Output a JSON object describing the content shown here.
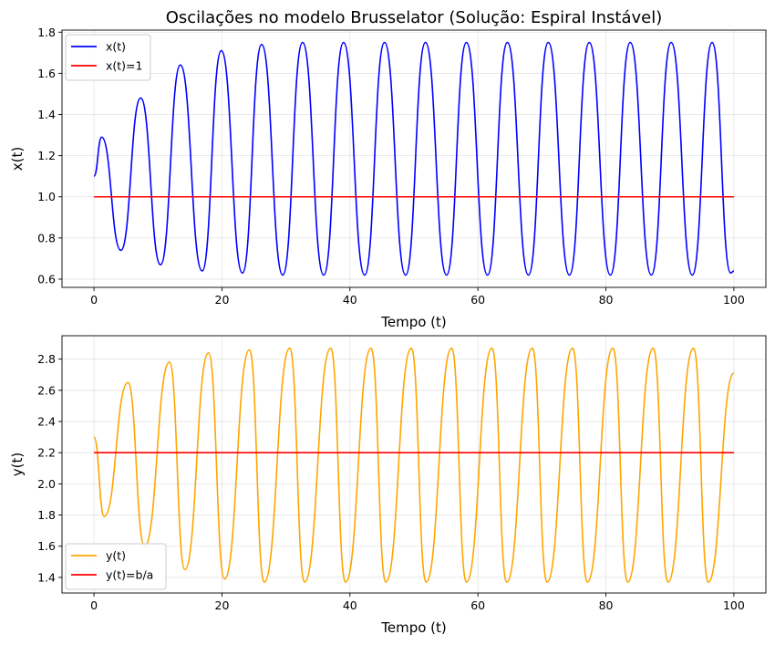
{
  "figure": {
    "title": "Oscilações no modelo Brusselator (Solução: Espiral Instável)"
  },
  "chart_data": [
    {
      "type": "line",
      "xlabel": "Tempo (t)",
      "ylabel": "x(t)",
      "xlim": [
        -5,
        105
      ],
      "ylim": [
        0.56,
        1.81
      ],
      "xticks": [
        0,
        20,
        40,
        60,
        80,
        100
      ],
      "yticks": [
        0.6,
        0.8,
        1.0,
        1.2,
        1.4,
        1.6,
        1.8
      ],
      "ytick_labels": [
        "0.6",
        "0.8",
        "1.0",
        "1.2",
        "1.4",
        "1.6",
        "1.8"
      ],
      "grid": true,
      "legend": "top-left",
      "series": [
        {
          "name": "x(t)",
          "color": "#0000ff",
          "x": [
            0,
            1.2,
            4.2,
            7.3,
            10.4,
            13.5,
            16.9,
            19.9,
            23.2,
            26.2,
            29.5,
            32.6,
            35.9,
            39.0,
            42.3,
            45.4,
            48.7,
            51.8,
            55.1,
            58.2,
            61.5,
            64.6,
            67.9,
            71.0,
            74.3,
            77.4,
            80.7,
            83.8,
            87.1,
            90.2,
            93.5,
            96.6,
            99.5,
            100
          ],
          "y": [
            1.1,
            1.29,
            0.74,
            1.48,
            0.67,
            1.64,
            0.64,
            1.71,
            0.63,
            1.74,
            0.62,
            1.75,
            0.62,
            1.75,
            0.62,
            1.75,
            0.62,
            1.75,
            0.62,
            1.75,
            0.62,
            1.75,
            0.62,
            1.75,
            0.62,
            1.75,
            0.62,
            1.75,
            0.62,
            1.75,
            0.62,
            1.75,
            0.63,
            0.64
          ]
        },
        {
          "name": "x(t)=1",
          "color": "#ff0000",
          "x": [
            0,
            100
          ],
          "y": [
            1.0,
            1.0
          ]
        }
      ]
    },
    {
      "type": "line",
      "xlabel": "Tempo (t)",
      "ylabel": "y(t)",
      "xlim": [
        -5,
        105
      ],
      "ylim": [
        1.3,
        2.95
      ],
      "xticks": [
        0,
        20,
        40,
        60,
        80,
        100
      ],
      "yticks": [
        1.4,
        1.6,
        1.8,
        2.0,
        2.2,
        2.4,
        2.6,
        2.8
      ],
      "ytick_labels": [
        "1.4",
        "1.6",
        "1.8",
        "2.0",
        "2.2",
        "2.4",
        "2.6",
        "2.8"
      ],
      "grid": true,
      "legend": "bottom-left",
      "series": [
        {
          "name": "y(t)",
          "color": "#ffa500",
          "x": [
            0,
            1.6,
            5.3,
            7.9,
            11.8,
            14.2,
            17.9,
            20.4,
            24.3,
            26.6,
            30.6,
            32.9,
            37.0,
            39.3,
            43.3,
            45.6,
            49.6,
            51.9,
            55.9,
            58.2,
            62.2,
            64.5,
            68.5,
            70.8,
            74.8,
            77.1,
            81.1,
            83.4,
            87.4,
            89.7,
            93.7,
            96.0,
            100
          ],
          "y": [
            2.3,
            1.79,
            2.65,
            1.6,
            2.78,
            1.45,
            2.84,
            1.39,
            2.86,
            1.37,
            2.87,
            1.37,
            2.87,
            1.37,
            2.87,
            1.37,
            2.87,
            1.37,
            2.87,
            1.37,
            2.87,
            1.37,
            2.87,
            1.37,
            2.87,
            1.37,
            2.87,
            1.37,
            2.87,
            1.37,
            2.87,
            1.37,
            2.71
          ]
        },
        {
          "name": "y(t)=b/a",
          "color": "#ff0000",
          "x": [
            0,
            100
          ],
          "y": [
            2.2,
            2.2
          ]
        }
      ]
    }
  ]
}
